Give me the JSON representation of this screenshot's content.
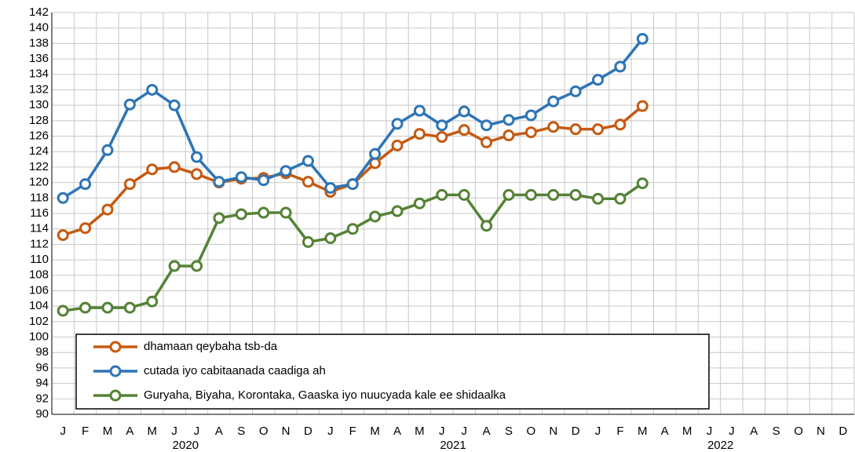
{
  "chart_data": {
    "type": "line",
    "categories": [
      "J",
      "F",
      "M",
      "A",
      "M",
      "J",
      "J",
      "A",
      "S",
      "O",
      "N",
      "D",
      "J",
      "F",
      "M",
      "A",
      "M",
      "J",
      "J",
      "A",
      "S",
      "O",
      "N",
      "D",
      "J",
      "F",
      "M",
      "A",
      "M",
      "J",
      "J",
      "A",
      "S",
      "O",
      "N",
      "D"
    ],
    "year_labels": [
      "2020",
      "2021",
      "2022"
    ],
    "series": [
      {
        "name": "dhamaan qeybaha tsb-da",
        "color": "#c55a11",
        "values": [
          113.2,
          114.1,
          116.5,
          119.8,
          121.7,
          122.0,
          121.1,
          120.0,
          120.5,
          120.6,
          121.2,
          120.1,
          118.8,
          119.8,
          122.5,
          124.8,
          126.3,
          125.9,
          126.8,
          125.2,
          126.1,
          126.5,
          127.2,
          126.9,
          126.9,
          127.5,
          129.9,
          null,
          null,
          null,
          null,
          null,
          null,
          null,
          null,
          null
        ]
      },
      {
        "name": "cutada iyo cabitaanada caadiga ah",
        "color": "#2e75b6",
        "values": [
          118.0,
          119.8,
          124.2,
          130.1,
          132.0,
          130.0,
          123.3,
          120.1,
          120.7,
          120.3,
          121.5,
          122.8,
          119.3,
          119.8,
          123.7,
          127.6,
          129.3,
          127.4,
          129.2,
          127.4,
          128.1,
          128.7,
          130.5,
          131.8,
          133.3,
          135.0,
          138.6,
          null,
          null,
          null,
          null,
          null,
          null,
          null,
          null,
          null
        ]
      },
      {
        "name": "Guryaha, Biyaha, Korontaka, Gaaska iyo nuucyada kale ee shidaalka",
        "color": "#548235",
        "values": [
          103.4,
          103.8,
          103.8,
          103.8,
          104.6,
          109.2,
          109.2,
          115.4,
          115.9,
          116.1,
          116.1,
          112.3,
          112.8,
          114.0,
          115.6,
          116.3,
          117.3,
          118.4,
          118.4,
          114.4,
          118.4,
          118.4,
          118.4,
          118.4,
          117.9,
          117.9,
          119.9,
          null,
          null,
          null,
          null,
          null,
          null,
          null,
          null,
          null
        ]
      }
    ],
    "ylim": [
      90,
      142
    ],
    "yticks": [
      90,
      92,
      94,
      96,
      98,
      100,
      102,
      104,
      106,
      108,
      110,
      112,
      114,
      116,
      118,
      120,
      122,
      124,
      126,
      128,
      130,
      132,
      134,
      136,
      138,
      140,
      142
    ],
    "grid": true
  }
}
